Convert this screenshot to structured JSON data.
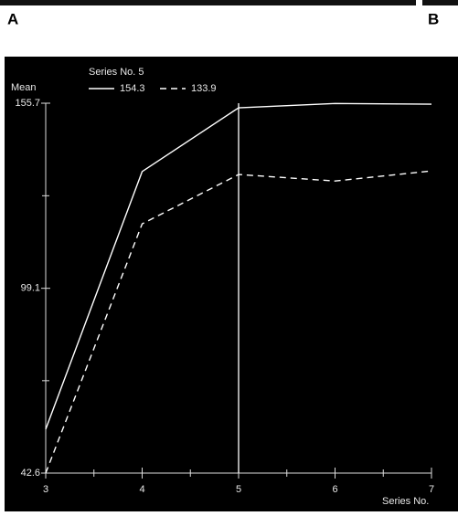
{
  "panel_labels": [
    "A",
    "B"
  ],
  "chart_data": {
    "type": "line",
    "cursor_label": "Series No. 5",
    "cursor_x": 5,
    "ylabel": "Mean",
    "xlabel": "Series No.",
    "x": [
      3,
      4,
      5,
      6,
      7
    ],
    "series": [
      {
        "name": "154.3",
        "color": "#ffffff",
        "dash": "solid",
        "values": [
          56.0,
          134.8,
          154.3,
          155.6,
          155.4
        ]
      },
      {
        "name": "133.9",
        "color": "#ffffff",
        "dash": "dashed",
        "values": [
          42.6,
          118.8,
          133.9,
          131.9,
          135.0
        ]
      }
    ],
    "xlim": [
      3,
      7
    ],
    "xticks": [
      3,
      4,
      5,
      6,
      7
    ],
    "ylim": [
      42.6,
      155.7
    ],
    "yticks": [
      42.6,
      99.1,
      155.7
    ]
  }
}
